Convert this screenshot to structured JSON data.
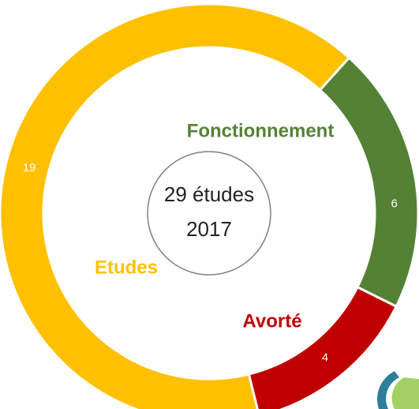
{
  "chart_data": {
    "type": "donut",
    "categories": [
      "Fonctionnement",
      "Avorté",
      "Etudes"
    ],
    "values": [
      6,
      4,
      19
    ],
    "colors": [
      "#548235",
      "#C00000",
      "#FFC000"
    ],
    "center_label": [
      "29 études",
      "2017"
    ]
  }
}
